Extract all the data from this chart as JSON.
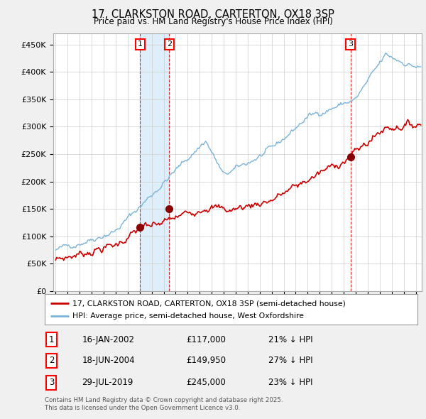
{
  "title": "17, CLARKSTON ROAD, CARTERTON, OX18 3SP",
  "subtitle": "Price paid vs. HM Land Registry's House Price Index (HPI)",
  "legend_price_label": "17, CLARKSTON ROAD, CARTERTON, OX18 3SP (semi-detached house)",
  "legend_hpi_label": "HPI: Average price, semi-detached house, West Oxfordshire",
  "hpi_color": "#7ab4d8",
  "price_color": "#cc0000",
  "background_color": "#f0f0f0",
  "plot_bg_color": "#ffffff",
  "grid_color": "#cccccc",
  "shade_color": "#d0e8f8",
  "transactions": [
    {
      "num": 1,
      "date": "16-JAN-2002",
      "price": 117000,
      "year": 2002.04,
      "hpi_diff": "21% ↓ HPI"
    },
    {
      "num": 2,
      "date": "18-JUN-2004",
      "price": 149950,
      "year": 2004.46,
      "hpi_diff": "27% ↓ HPI"
    },
    {
      "num": 3,
      "date": "29-JUL-2019",
      "price": 245000,
      "year": 2019.57,
      "hpi_diff": "23% ↓ HPI"
    }
  ],
  "footer_line1": "Contains HM Land Registry data © Crown copyright and database right 2025.",
  "footer_line2": "This data is licensed under the Open Government Licence v3.0.",
  "ylim": [
    0,
    470000
  ],
  "yticks": [
    0,
    50000,
    100000,
    150000,
    200000,
    250000,
    300000,
    350000,
    400000,
    450000
  ],
  "ytick_labels": [
    "£0",
    "£50K",
    "£100K",
    "£150K",
    "£200K",
    "£250K",
    "£300K",
    "£350K",
    "£400K",
    "£450K"
  ],
  "xmin": 1994.8,
  "xmax": 2025.5
}
